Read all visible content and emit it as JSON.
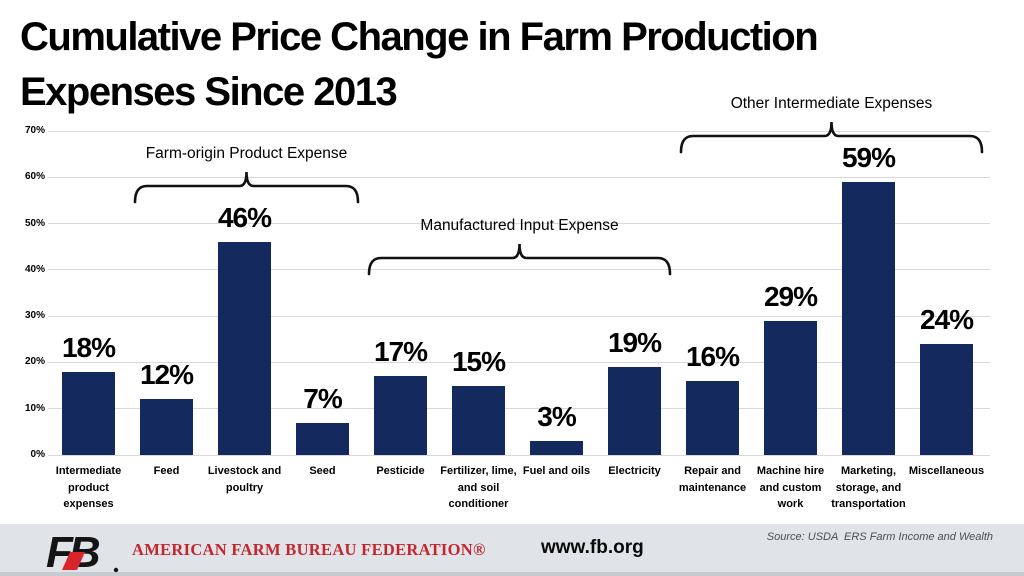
{
  "title": "Cumulative Price Change in Farm Production\nExpenses Since 2013",
  "chart_data": {
    "type": "bar",
    "categories": [
      "Intermediate\nproduct\nexpenses",
      "Feed",
      "Livestock and\npoultry",
      "Seed",
      "Pesticide",
      "Fertilizer, lime,\nand soil\nconditioner",
      "Fuel and oils",
      "Electricity",
      "Repair and\nmaintenance",
      "Machine hire\nand custom\nwork",
      "Marketing,\nstorage, and\ntransportation",
      "Miscellaneous"
    ],
    "values": [
      18,
      12,
      46,
      7,
      17,
      15,
      3,
      19,
      16,
      29,
      59,
      24
    ],
    "value_labels": [
      "18%",
      "12%",
      "46%",
      "7%",
      "17%",
      "15%",
      "3%",
      "19%",
      "16%",
      "29%",
      "59%",
      "24%"
    ],
    "y_ticks": [
      "0%",
      "10%",
      "20%",
      "30%",
      "40%",
      "50%",
      "60%",
      "70%"
    ],
    "ylim": [
      0,
      70
    ],
    "grid": true,
    "legend": "none",
    "bar_color": "#14295e",
    "groups": [
      {
        "label": "Farm-origin Product Expense",
        "from": 1,
        "to": 3
      },
      {
        "label": "Manufactured Input Expense",
        "from": 4,
        "to": 7
      },
      {
        "label": "Other Intermediate Expenses",
        "from": 8,
        "to": 11
      }
    ]
  },
  "footer": {
    "org_name": "AMERICAN FARM BUREAU FEDERATION®",
    "website": "www.fb.org",
    "source": "Source: USDA  ERS Farm Income and Wealth",
    "logo_text": "FB"
  },
  "colors": {
    "bar": "#14295e",
    "gridline": "#d9d9d9",
    "footer_bg": "#e0e4e8",
    "accent_red": "#c1272d",
    "text": "#000000"
  }
}
